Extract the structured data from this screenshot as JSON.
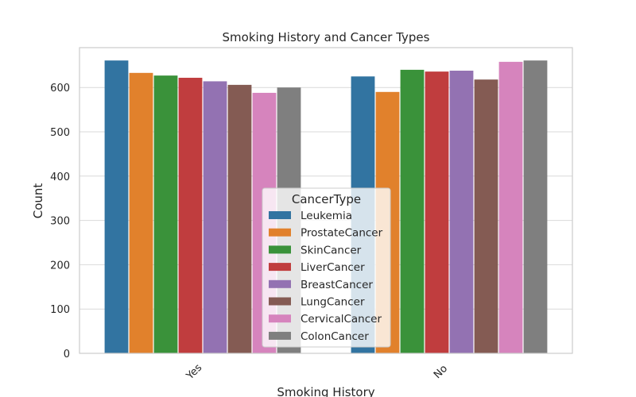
{
  "chart_data": {
    "type": "bar",
    "title": "Smoking History and Cancer Types",
    "xlabel": "Smoking History",
    "ylabel": "Count",
    "categories": [
      "Yes",
      "No"
    ],
    "ylim": [
      0,
      690
    ],
    "yticks": [
      0,
      100,
      200,
      300,
      400,
      500,
      600
    ],
    "grid": true,
    "legend": {
      "title": "CancerType",
      "placement": "lower-center"
    },
    "series": [
      {
        "name": "Leukemia",
        "color": "#3274a1",
        "values": [
          661,
          625
        ]
      },
      {
        "name": "ProstateCancer",
        "color": "#e1812c",
        "values": [
          633,
          590
        ]
      },
      {
        "name": "SkinCancer",
        "color": "#3a923a",
        "values": [
          627,
          640
        ]
      },
      {
        "name": "LiverCancer",
        "color": "#c03d3e",
        "values": [
          622,
          636
        ]
      },
      {
        "name": "BreastCancer",
        "color": "#9372b2",
        "values": [
          614,
          638
        ]
      },
      {
        "name": "LungCancer",
        "color": "#845b53",
        "values": [
          606,
          618
        ]
      },
      {
        "name": "CervicalCancer",
        "color": "#d684bd",
        "values": [
          588,
          658
        ]
      },
      {
        "name": "ColonCancer",
        "color": "#7f7f7f",
        "values": [
          600,
          661
        ]
      }
    ]
  }
}
